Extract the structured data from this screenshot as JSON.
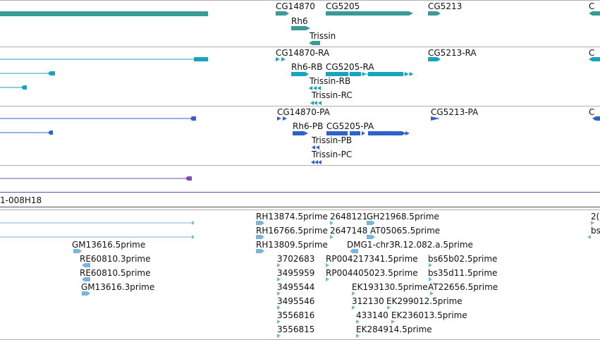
{
  "colors": {
    "gene": "#3a9a96",
    "mrna": "#17a4bd",
    "protein": "#2f63cc",
    "insertion": "#7a4fa8",
    "est": "#7ab5dc",
    "separator": "#b0b0b0"
  },
  "tracks": {
    "genes": {
      "labels": [
        "CG14870",
        "CG5205",
        "CG5213",
        "Rh6",
        "Trissin"
      ]
    },
    "mrnas": {
      "labels": [
        "CG14870-RA",
        "CG5213-RA",
        "Rh6-RB",
        "CG5205-RA",
        "Trissin-RB",
        "Trissin-RC"
      ]
    },
    "proteins": {
      "labels": [
        "CG14870-PA",
        "CG5213-PA",
        "Rh6-PB",
        "CG5205-PA",
        "Trissin-PB",
        "Trissin-PC"
      ]
    },
    "clone": {
      "label": "1-008H18"
    },
    "ests": {
      "labels": [
        "RH13874.5prime",
        "2648121",
        "GH21968.5prime",
        "2(",
        "RH16766.5prime",
        "2647148",
        "AT05065.5prime",
        "bs",
        "GM13616.5prime",
        "RH13809.5prime",
        "DMG1-chr3R.12.082.a.5prime",
        "RE60810.3prime",
        "3702683",
        "RP004217341.5prime",
        "bs65b02.5prime",
        "RE60810.5prime",
        "3495959",
        "RP004405023.5prime",
        "bs35d11.5prime",
        "GM13616.3prime",
        "3495544",
        "EK193130.5prime",
        "AT22656.5prime",
        "3495546",
        "312130",
        "EK299012.5prime",
        "3556816",
        "433140",
        "EK236013.5prime",
        "3556815",
        "EK284914.5prime"
      ]
    }
  }
}
